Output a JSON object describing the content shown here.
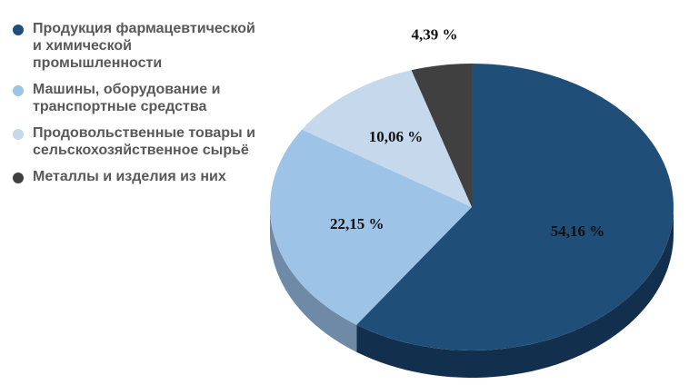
{
  "chart_data": {
    "type": "pie",
    "style": "3d",
    "legend_position": "left",
    "categories": [
      "Продукция фармацевтической и химической промышленности",
      "Машины, оборудование и транспортные средства",
      "Продовольственные товары и сельскохозяйственное сырьё",
      "Металлы и изделия из них"
    ],
    "values": [
      54.16,
      22.15,
      10.06,
      4.39
    ],
    "value_labels": [
      "54,16 %",
      "22,15 %",
      "10,06 %",
      "4,39 %"
    ],
    "colors": [
      "#1f4e79",
      "#9dc3e6",
      "#c6d9ec",
      "#404040"
    ],
    "side_colors": [
      "#12304d",
      "#6f8aa6",
      "#8fa0b3",
      "#2a2a2a"
    ]
  }
}
